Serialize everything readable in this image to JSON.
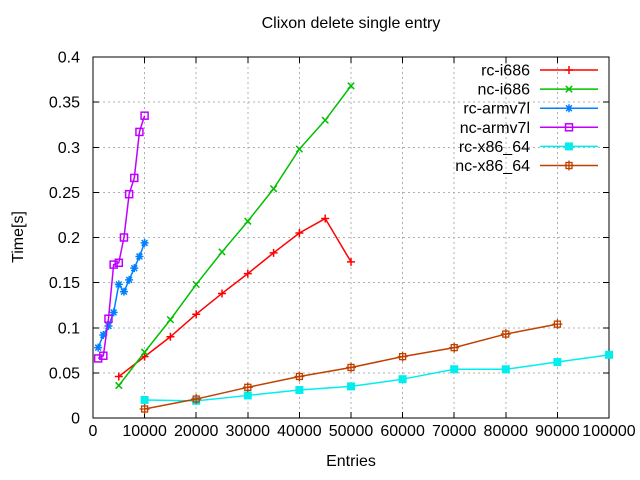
{
  "chart_data": {
    "type": "line",
    "title": "Clixon delete single entry",
    "xlabel": "Entries",
    "ylabel": "Time[s]",
    "xlim": [
      0,
      100000
    ],
    "ylim": [
      0,
      0.4
    ],
    "x_ticks": [
      0,
      10000,
      20000,
      30000,
      40000,
      50000,
      60000,
      70000,
      80000,
      90000,
      100000
    ],
    "x_tick_labels": [
      "0",
      "10000",
      "20000",
      "30000",
      "40000",
      "50000",
      "60000",
      "70000",
      "80000",
      "90000",
      "100000"
    ],
    "y_ticks": [
      0,
      0.05,
      0.1,
      0.15,
      0.2,
      0.25,
      0.3,
      0.35,
      0.4
    ],
    "y_tick_labels": [
      "0",
      "0.05",
      "0.1",
      "0.15",
      "0.2",
      "0.25",
      "0.3",
      "0.35",
      "0.4"
    ],
    "grid": true,
    "legend_position": "top-right-inside",
    "grid_color": "#b0b0b0",
    "axis_color": "#000000",
    "series": [
      {
        "name": "rc-i686",
        "color": "#ff0000",
        "marker": "plus",
        "points": [
          [
            5000,
            0.046
          ],
          [
            10000,
            0.068
          ],
          [
            15000,
            0.09
          ],
          [
            20000,
            0.115
          ],
          [
            25000,
            0.138
          ],
          [
            30000,
            0.16
          ],
          [
            35000,
            0.183
          ],
          [
            40000,
            0.205
          ],
          [
            45000,
            0.221
          ],
          [
            50000,
            0.173
          ]
        ]
      },
      {
        "name": "nc-i686",
        "color": "#00c000",
        "marker": "cross",
        "points": [
          [
            5000,
            0.036
          ],
          [
            10000,
            0.073
          ],
          [
            15000,
            0.109
          ],
          [
            20000,
            0.148
          ],
          [
            25000,
            0.184
          ],
          [
            30000,
            0.218
          ],
          [
            35000,
            0.254
          ],
          [
            40000,
            0.298
          ],
          [
            45000,
            0.33
          ],
          [
            50000,
            0.368
          ]
        ]
      },
      {
        "name": "rc-armv7l",
        "color": "#0080ff",
        "marker": "asterisk",
        "points": [
          [
            1000,
            0.078
          ],
          [
            2000,
            0.092
          ],
          [
            3000,
            0.102
          ],
          [
            4000,
            0.117
          ],
          [
            5000,
            0.148
          ],
          [
            6000,
            0.14
          ],
          [
            7000,
            0.153
          ],
          [
            8000,
            0.166
          ],
          [
            9000,
            0.179
          ],
          [
            10000,
            0.194
          ]
        ]
      },
      {
        "name": "nc-armv7l",
        "color": "#c000ff",
        "marker": "square-open",
        "points": [
          [
            1000,
            0.066
          ],
          [
            2000,
            0.069
          ],
          [
            3000,
            0.11
          ],
          [
            4000,
            0.17
          ],
          [
            5000,
            0.172
          ],
          [
            6000,
            0.2
          ],
          [
            7000,
            0.248
          ],
          [
            8000,
            0.266
          ],
          [
            9000,
            0.317
          ],
          [
            10000,
            0.335
          ]
        ]
      },
      {
        "name": "rc-x86_64",
        "color": "#00eeee",
        "marker": "square-filled",
        "points": [
          [
            10000,
            0.02
          ],
          [
            20000,
            0.019
          ],
          [
            30000,
            0.025
          ],
          [
            40000,
            0.031
          ],
          [
            50000,
            0.035
          ],
          [
            60000,
            0.043
          ],
          [
            70000,
            0.054
          ],
          [
            80000,
            0.054
          ],
          [
            90000,
            0.062
          ],
          [
            100000,
            0.07
          ]
        ]
      },
      {
        "name": "nc-x86_64",
        "color": "#c04000",
        "marker": "square-cross",
        "points": [
          [
            10000,
            0.01
          ],
          [
            20000,
            0.021
          ],
          [
            30000,
            0.034
          ],
          [
            40000,
            0.046
          ],
          [
            50000,
            0.056
          ],
          [
            60000,
            0.068
          ],
          [
            70000,
            0.078
          ],
          [
            80000,
            0.093
          ],
          [
            90000,
            0.104
          ]
        ]
      }
    ]
  }
}
